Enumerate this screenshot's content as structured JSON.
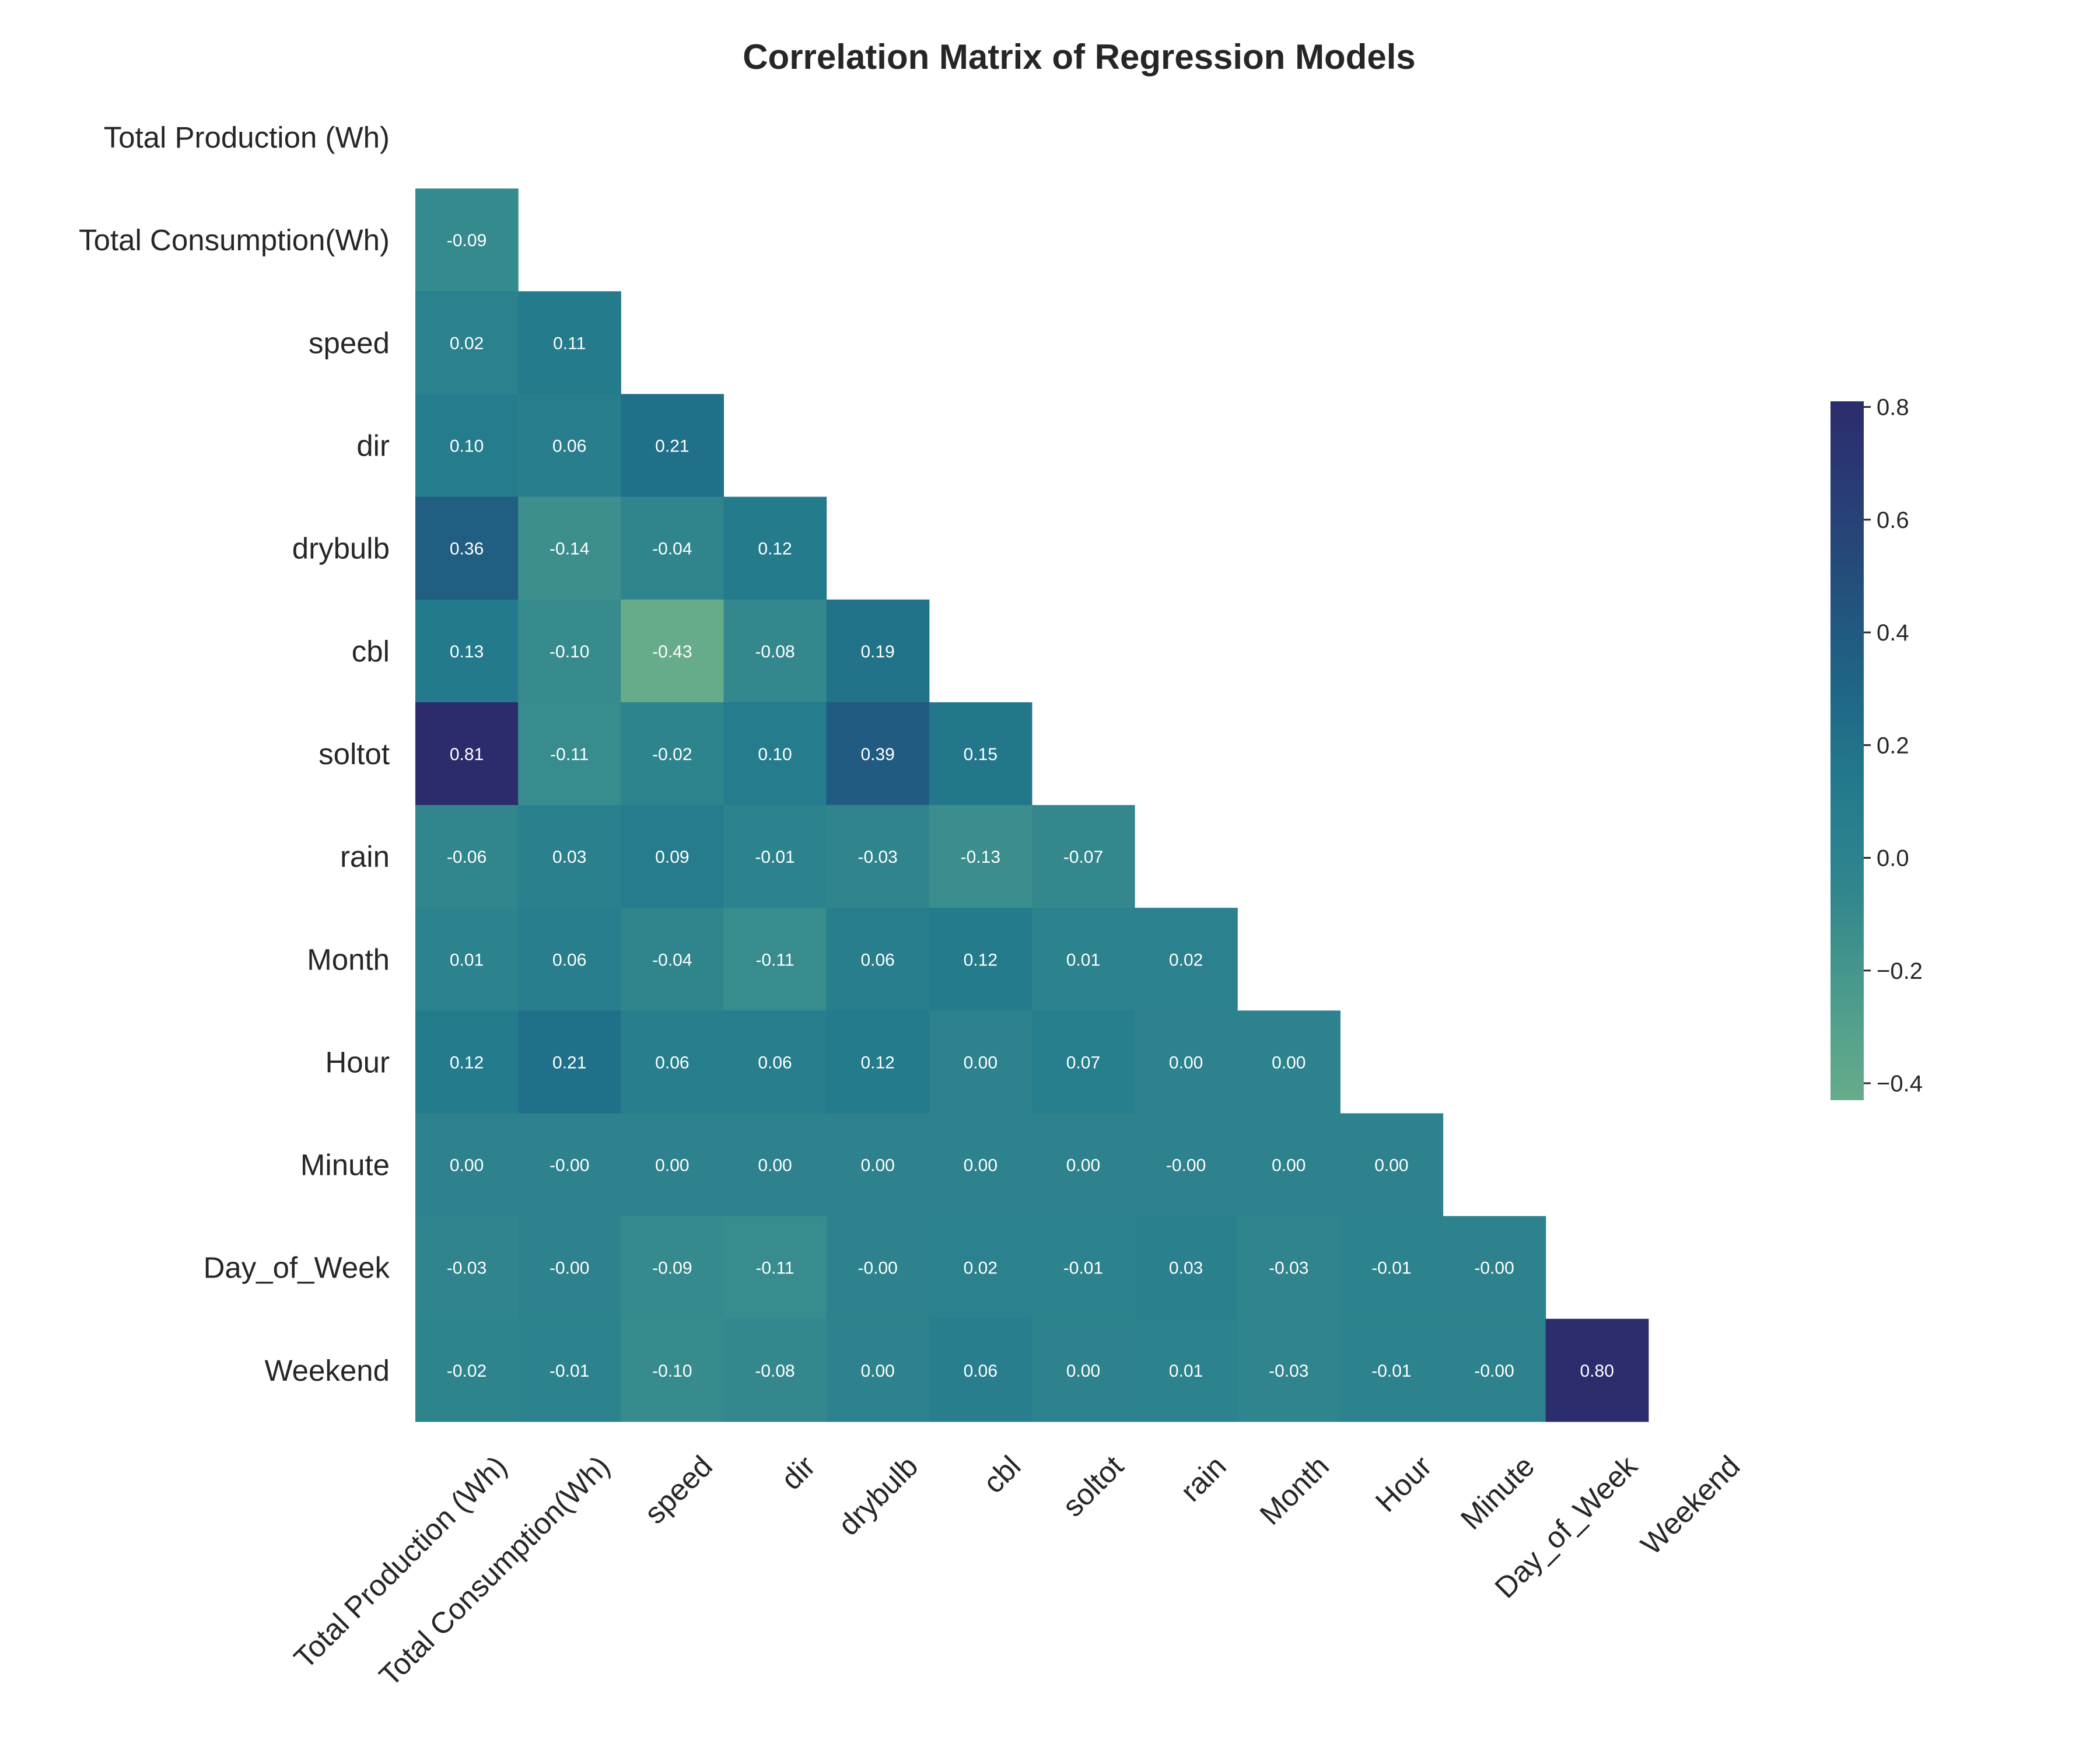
{
  "chart_data": {
    "type": "heatmap",
    "title": "Correlation Matrix of Regression Models",
    "variables": [
      "Total Production (Wh)",
      "Total Consumption(Wh)",
      "speed",
      "dir",
      "drybulb",
      "cbl",
      "soltot",
      "rain",
      "Month",
      "Hour",
      "Minute",
      "Day_of_Week",
      "Weekend"
    ],
    "mask": "upper triangle including diagonal",
    "lower_triangle": [
      [],
      [
        -0.09
      ],
      [
        0.02,
        0.11
      ],
      [
        0.1,
        0.06,
        0.21
      ],
      [
        0.36,
        -0.14,
        -0.04,
        0.12
      ],
      [
        0.13,
        -0.1,
        -0.43,
        -0.08,
        0.19
      ],
      [
        0.81,
        -0.11,
        -0.02,
        0.1,
        0.39,
        0.15
      ],
      [
        -0.06,
        0.03,
        0.09,
        -0.01,
        -0.03,
        -0.13,
        -0.07
      ],
      [
        0.01,
        0.06,
        -0.04,
        -0.11,
        0.06,
        0.12,
        0.01,
        0.02
      ],
      [
        0.12,
        0.21,
        0.06,
        0.06,
        0.12,
        0.0,
        0.07,
        0.0,
        0.0
      ],
      [
        0.0,
        -0.0,
        0.0,
        0.0,
        0.0,
        0.0,
        0.0,
        -0.0,
        0.0,
        0.0
      ],
      [
        -0.03,
        -0.0,
        -0.09,
        -0.11,
        -0.0,
        0.02,
        -0.01,
        0.03,
        -0.03,
        -0.01,
        -0.0
      ],
      [
        -0.02,
        -0.01,
        -0.1,
        -0.08,
        0.0,
        0.06,
        0.0,
        0.01,
        -0.03,
        -0.01,
        -0.0,
        0.8
      ]
    ],
    "annotation_format": "0.00",
    "colormap": "crest",
    "color_range": [
      -0.43,
      0.81
    ],
    "colorbar_ticks": [
      "0.8",
      "0.6",
      "0.4",
      "0.2",
      "0.0",
      "−0.2",
      "−0.4"
    ],
    "colorbar_tick_values": [
      0.8,
      0.6,
      0.4,
      0.2,
      0.0,
      -0.2,
      -0.4
    ],
    "colorbar_placement": "right",
    "grid": false
  }
}
